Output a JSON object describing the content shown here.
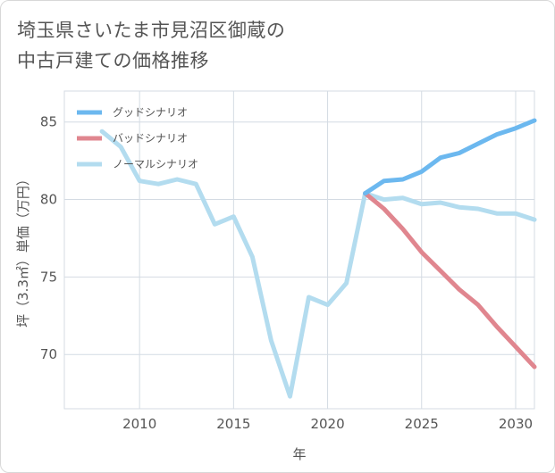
{
  "title_line1": "埼玉県さいたま市見沼区御蔵の",
  "title_line2": "中古戸建ての価格推移",
  "chart_data": {
    "type": "line",
    "xlabel": "年",
    "ylabel": "坪（3.3㎡）単価（万円）",
    "xlim": [
      2006.0,
      2031.0
    ],
    "ylim": [
      66.5,
      87.0
    ],
    "xticks": [
      2010,
      2015,
      2020,
      2025,
      2030
    ],
    "yticks": [
      70,
      75,
      80,
      85
    ],
    "legend_position": "top-left",
    "series": [
      {
        "name": "グッドシナリオ",
        "color": "#6cb8ef",
        "x": [
          2022,
          2023,
          2024,
          2025,
          2026,
          2027,
          2028,
          2029,
          2030,
          2031
        ],
        "values": [
          80.4,
          81.2,
          81.3,
          81.8,
          82.7,
          83.0,
          83.6,
          84.2,
          84.6,
          85.1
        ]
      },
      {
        "name": "バッドシナリオ",
        "color": "#e0868f",
        "x": [
          2022,
          2023,
          2024,
          2025,
          2026,
          2027,
          2028,
          2029,
          2030,
          2031
        ],
        "values": [
          80.4,
          79.4,
          78.1,
          76.6,
          75.4,
          74.2,
          73.2,
          71.8,
          70.5,
          69.2
        ]
      },
      {
        "name": "ノーマルシナリオ",
        "color": "#b3dcef",
        "x": [
          2008,
          2009,
          2010,
          2011,
          2012,
          2013,
          2014,
          2015,
          2016,
          2017,
          2018,
          2019,
          2020,
          2021,
          2022,
          2023,
          2024,
          2025,
          2026,
          2027,
          2028,
          2029,
          2030,
          2031
        ],
        "values": [
          84.4,
          83.4,
          81.2,
          81.0,
          81.3,
          81.0,
          78.4,
          78.9,
          76.3,
          70.9,
          67.3,
          73.7,
          73.2,
          74.6,
          80.4,
          80.0,
          80.1,
          79.7,
          79.8,
          79.5,
          79.4,
          79.1,
          79.1,
          78.7
        ]
      }
    ]
  }
}
